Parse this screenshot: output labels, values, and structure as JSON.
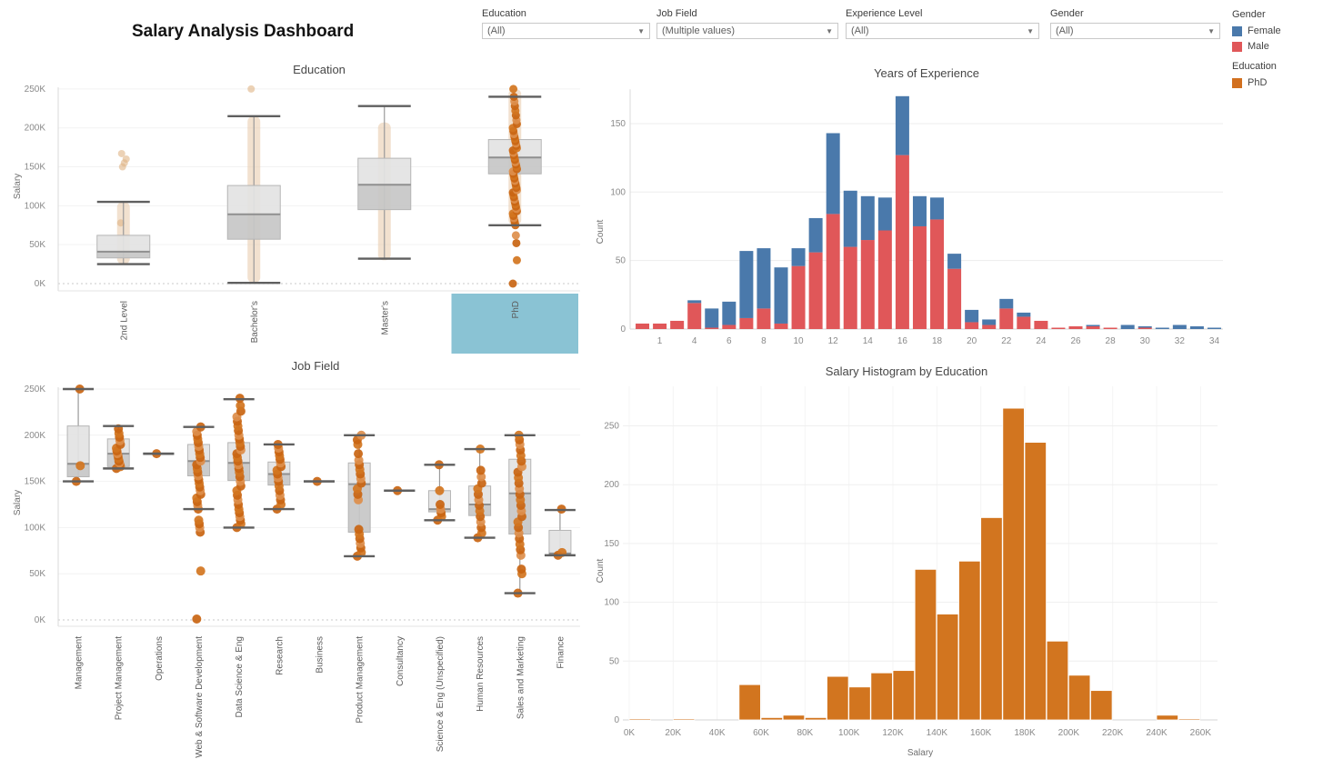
{
  "header": {
    "title": "Salary Analysis Dashboard"
  },
  "filters": [
    {
      "label": "Education",
      "value": "(All)"
    },
    {
      "label": "Job Field",
      "value": "(Multiple values)"
    },
    {
      "label": "Experience Level",
      "value": "(All)"
    },
    {
      "label": "Gender",
      "value": "(All)"
    }
  ],
  "legends": {
    "gender": {
      "title": "Gender",
      "items": [
        {
          "label": "Female",
          "color": "#4a79ab"
        },
        {
          "label": "Male",
          "color": "#e05759"
        }
      ]
    },
    "education": {
      "title": "Education",
      "items": [
        {
          "label": "PhD",
          "color": "#d2701f"
        }
      ]
    }
  },
  "colors": {
    "female_blue": "#4a79ab",
    "male_red": "#e05759",
    "phd_orange": "#d2701f",
    "highlight_teal": "#8ac3d4",
    "box_light": "#e3e3e3",
    "box_dark": "#c7c7c7"
  },
  "chart_data": [
    {
      "id": "chart-education-boxplot",
      "type": "boxplot",
      "title": "Education",
      "ylabel": "Salary",
      "ylim": [
        0,
        260
      ],
      "ytick_values": [
        0,
        50,
        100,
        150,
        200,
        250
      ],
      "ytick_labels": [
        "0K",
        "50K",
        "100K",
        "150K",
        "200K",
        "250K"
      ],
      "categories": [
        "2nd Level",
        "Bachelor's",
        "Master's",
        "PhD"
      ],
      "highlighted_category": "PhD",
      "boxes": [
        {
          "low": 25,
          "q1": 33,
          "median": 41,
          "q3": 62,
          "high": 105,
          "selected": false,
          "band": [
            25,
            105
          ],
          "outlier_points": [
            78,
            150,
            155,
            160,
            167
          ],
          "points": []
        },
        {
          "low": 1,
          "q1": 57,
          "median": 89,
          "q3": 126,
          "high": 215,
          "selected": false,
          "band": [
            1,
            215
          ],
          "outlier_points": [
            250
          ],
          "points": []
        },
        {
          "low": 32,
          "q1": 95,
          "median": 127,
          "q3": 161,
          "high": 228,
          "selected": false,
          "band": [
            30,
            207
          ],
          "outlier_points": [],
          "points": []
        },
        {
          "low": 75,
          "q1": 141,
          "median": 162,
          "q3": 185,
          "high": 240,
          "selected": true,
          "band": [
            75,
            250
          ],
          "outlier_points": [],
          "points": [
            0,
            30,
            52,
            62,
            75,
            78,
            81,
            84,
            87,
            90,
            93,
            96,
            99,
            102,
            105,
            108,
            111,
            114,
            117,
            120,
            123,
            126,
            129,
            132,
            135,
            138,
            141,
            144,
            147,
            150,
            153,
            156,
            159,
            162,
            165,
            168,
            171,
            174,
            177,
            180,
            183,
            186,
            189,
            192,
            196,
            200,
            205,
            210,
            216,
            222,
            228,
            234,
            240,
            250
          ]
        }
      ]
    },
    {
      "id": "chart-experience-bars",
      "type": "stacked-bar",
      "title": "Years of Experience",
      "ylabel": "Count",
      "ylim": [
        0,
        175
      ],
      "ytick_values": [
        0,
        50,
        100,
        150
      ],
      "x": [
        0,
        1,
        2,
        4,
        5,
        6,
        7,
        8,
        9,
        10,
        11,
        12,
        13,
        14,
        15,
        16,
        17,
        18,
        19,
        20,
        21,
        22,
        23,
        24,
        25,
        26,
        27,
        28,
        29,
        30,
        31,
        32,
        33,
        34
      ],
      "xtick_labeled_values": [
        1,
        4,
        6,
        8,
        10,
        12,
        14,
        16,
        18,
        20,
        22,
        24,
        26,
        28,
        30,
        32,
        34
      ],
      "series": [
        {
          "name": "Male",
          "color": "#e05759",
          "values": [
            4,
            4,
            6,
            19,
            1,
            3,
            8,
            15,
            4,
            46,
            56,
            84,
            60,
            65,
            72,
            127,
            75,
            80,
            44,
            5,
            3,
            15,
            9,
            6,
            1,
            2,
            2,
            1,
            0,
            1,
            0,
            0,
            0,
            0
          ]
        },
        {
          "name": "Female",
          "color": "#4a79ab",
          "values": [
            0,
            0,
            0,
            2,
            14,
            17,
            49,
            44,
            41,
            13,
            25,
            59,
            41,
            32,
            24,
            43,
            22,
            16,
            11,
            9,
            4,
            7,
            3,
            0,
            0,
            0,
            1,
            0,
            3,
            1,
            1,
            3,
            2,
            1
          ]
        }
      ]
    },
    {
      "id": "chart-jobfield-boxplot",
      "type": "boxplot",
      "title": "Job Field",
      "ylabel": "Salary",
      "ylim": [
        0,
        260
      ],
      "ytick_values": [
        0,
        50,
        100,
        150,
        200,
        250
      ],
      "ytick_labels": [
        "0K",
        "50K",
        "100K",
        "150K",
        "200K",
        "250K"
      ],
      "categories": [
        "Management",
        "Project Management",
        "Operations",
        "Web & Software Development",
        "Data Science & Eng",
        "Research",
        "Business",
        "Product Management",
        "Consultancy",
        "Science & Eng (Unspecified)",
        "Human Resources",
        "Sales and Marketing",
        "Finance"
      ],
      "highlighted_category": null,
      "boxes": [
        {
          "low": 150,
          "q1": 155,
          "median": 169,
          "q3": 210,
          "high": 250,
          "selected": true,
          "band": null,
          "outlier_points": [],
          "points": [
            150,
            167,
            250
          ]
        },
        {
          "low": 164,
          "q1": 166,
          "median": 180,
          "q3": 196,
          "high": 210,
          "selected": true,
          "band": null,
          "outlier_points": [],
          "points": [
            164,
            166,
            168,
            170,
            172,
            175,
            178,
            180,
            183,
            186,
            190,
            194,
            198,
            202,
            207
          ]
        },
        {
          "low": 180,
          "q1": 180,
          "median": 180,
          "q3": 180,
          "high": 180,
          "selected": true,
          "band": null,
          "outlier_points": [],
          "points": [
            180
          ]
        },
        {
          "low": 120,
          "q1": 156,
          "median": 172,
          "q3": 190,
          "high": 209,
          "selected": true,
          "band": null,
          "outlier_points": [],
          "points": [
            1,
            53,
            95,
            100,
            104,
            108,
            120,
            124,
            128,
            132,
            136,
            140,
            144,
            148,
            152,
            156,
            160,
            164,
            168,
            172,
            176,
            180,
            184,
            188,
            192,
            196,
            200,
            204,
            209
          ]
        },
        {
          "low": 100,
          "q1": 151,
          "median": 170,
          "q3": 192,
          "high": 239,
          "selected": true,
          "band": null,
          "outlier_points": [],
          "points": [
            100,
            104,
            108,
            112,
            116,
            120,
            125,
            130,
            135,
            140,
            145,
            150,
            155,
            160,
            164,
            168,
            172,
            176,
            180,
            184,
            188,
            192,
            196,
            200,
            205,
            210,
            215,
            220,
            226,
            232,
            240
          ]
        },
        {
          "low": 120,
          "q1": 146,
          "median": 158,
          "q3": 171,
          "high": 190,
          "selected": true,
          "band": null,
          "outlier_points": [],
          "points": [
            120,
            125,
            130,
            135,
            140,
            145,
            150,
            154,
            158,
            162,
            166,
            170,
            174,
            178,
            182,
            186,
            190
          ]
        },
        {
          "low": 150,
          "q1": 150,
          "median": 150,
          "q3": 150,
          "high": 150,
          "selected": true,
          "band": null,
          "outlier_points": [],
          "points": [
            150
          ]
        },
        {
          "low": 69,
          "q1": 95,
          "median": 147,
          "q3": 170,
          "high": 200,
          "selected": true,
          "band": null,
          "outlier_points": [],
          "points": [
            69,
            73,
            78,
            83,
            88,
            93,
            98,
            130,
            136,
            142,
            148,
            153,
            158,
            163,
            168,
            173,
            180,
            190,
            195,
            200
          ]
        },
        {
          "low": 140,
          "q1": 140,
          "median": 140,
          "q3": 140,
          "high": 140,
          "selected": true,
          "band": null,
          "outlier_points": [],
          "points": [
            140
          ]
        },
        {
          "low": 108,
          "q1": 117,
          "median": 120,
          "q3": 140,
          "high": 168,
          "selected": true,
          "band": null,
          "outlier_points": [],
          "points": [
            108,
            112,
            116,
            120,
            125,
            140,
            168
          ]
        },
        {
          "low": 89,
          "q1": 113,
          "median": 125,
          "q3": 145,
          "high": 185,
          "selected": true,
          "band": null,
          "outlier_points": [],
          "points": [
            89,
            94,
            100,
            106,
            112,
            118,
            124,
            130,
            136,
            142,
            148,
            155,
            162,
            185
          ]
        },
        {
          "low": 29,
          "q1": 93,
          "median": 137,
          "q3": 174,
          "high": 200,
          "selected": true,
          "band": null,
          "outlier_points": [],
          "points": [
            29,
            50,
            55,
            70,
            76,
            82,
            88,
            94,
            100,
            106,
            112,
            118,
            124,
            130,
            136,
            142,
            148,
            154,
            160,
            166,
            172,
            178,
            184,
            190,
            195,
            200
          ]
        },
        {
          "low": 70,
          "q1": 70,
          "median": 72,
          "q3": 97,
          "high": 119,
          "selected": true,
          "band": null,
          "outlier_points": [],
          "points": [
            70,
            73,
            120
          ]
        }
      ]
    },
    {
      "id": "chart-salary-histogram",
      "type": "histogram",
      "title": "Salary Histogram by Education",
      "xlabel": "Salary",
      "ylabel": "Count",
      "bar_color": "#d2751f",
      "bin_width": 10,
      "ylim": [
        0,
        280
      ],
      "ytick_values": [
        0,
        50,
        100,
        150,
        200,
        250
      ],
      "xtick_values": [
        0,
        20,
        40,
        60,
        80,
        100,
        120,
        140,
        160,
        180,
        200,
        220,
        240,
        260
      ],
      "xtick_labels": [
        "0K",
        "20K",
        "40K",
        "60K",
        "80K",
        "100K",
        "120K",
        "140K",
        "160K",
        "180K",
        "200K",
        "220K",
        "240K",
        "260K"
      ],
      "bins": [
        {
          "start": 0,
          "count": 1
        },
        {
          "start": 20,
          "count": 1
        },
        {
          "start": 50,
          "count": 30
        },
        {
          "start": 60,
          "count": 2
        },
        {
          "start": 70,
          "count": 4
        },
        {
          "start": 80,
          "count": 2
        },
        {
          "start": 90,
          "count": 37
        },
        {
          "start": 100,
          "count": 28
        },
        {
          "start": 110,
          "count": 40
        },
        {
          "start": 120,
          "count": 42
        },
        {
          "start": 130,
          "count": 128
        },
        {
          "start": 140,
          "count": 90
        },
        {
          "start": 150,
          "count": 135
        },
        {
          "start": 160,
          "count": 172
        },
        {
          "start": 170,
          "count": 265
        },
        {
          "start": 180,
          "count": 236
        },
        {
          "start": 190,
          "count": 67
        },
        {
          "start": 200,
          "count": 38
        },
        {
          "start": 210,
          "count": 25
        },
        {
          "start": 240,
          "count": 4
        },
        {
          "start": 250,
          "count": 1
        }
      ]
    }
  ]
}
